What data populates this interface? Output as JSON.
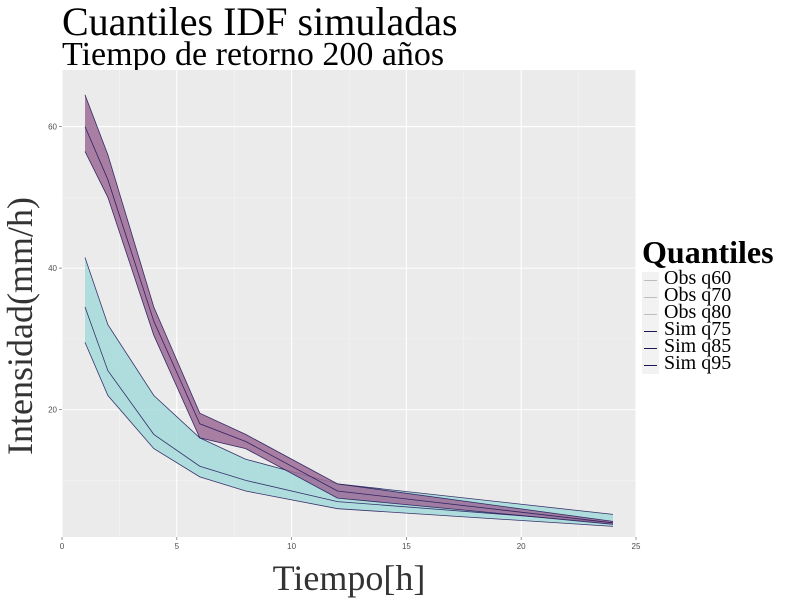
{
  "chart_data": {
    "type": "area",
    "title": "Cuantiles IDF simuladas",
    "subtitle": "Tiempo de retorno 200 años",
    "xlabel": "Tiempo[h]",
    "ylabel": "Intensidad(mm/h)",
    "xlim": [
      0,
      25
    ],
    "ylim": [
      2,
      68
    ],
    "xticks": [
      0,
      5,
      10,
      15,
      20,
      25
    ],
    "yticks": [
      20,
      40,
      60
    ],
    "grid": true,
    "legend_position": "right",
    "legend": {
      "title": "Quantiles",
      "items": [
        "Obs q60",
        "Obs q70",
        "Obs q80",
        "Sim q75",
        "Sim q85",
        "Sim q95"
      ]
    },
    "x": [
      1,
      2,
      4,
      6,
      8,
      12,
      24
    ],
    "bands": [
      {
        "fill": "#a5dbdb",
        "lower": [
          29.5,
          22,
          14.5,
          10.5,
          8.5,
          6,
          3.5
        ],
        "middle": [
          34.5,
          25.5,
          16.5,
          12,
          10,
          7,
          4
        ],
        "upper": [
          41.5,
          32,
          22,
          16,
          13,
          9.5,
          5.2
        ]
      },
      {
        "fill": "#9c6b96",
        "lower": [
          56.5,
          50,
          30.5,
          16,
          14.5,
          7.5,
          3.8
        ],
        "middle": [
          60,
          52.5,
          32.5,
          18,
          15.5,
          8.5,
          4
        ],
        "upper": [
          64.5,
          56,
          34.5,
          19.5,
          16.5,
          9.5,
          4.2
        ]
      }
    ],
    "line_color": "#1d1456"
  }
}
